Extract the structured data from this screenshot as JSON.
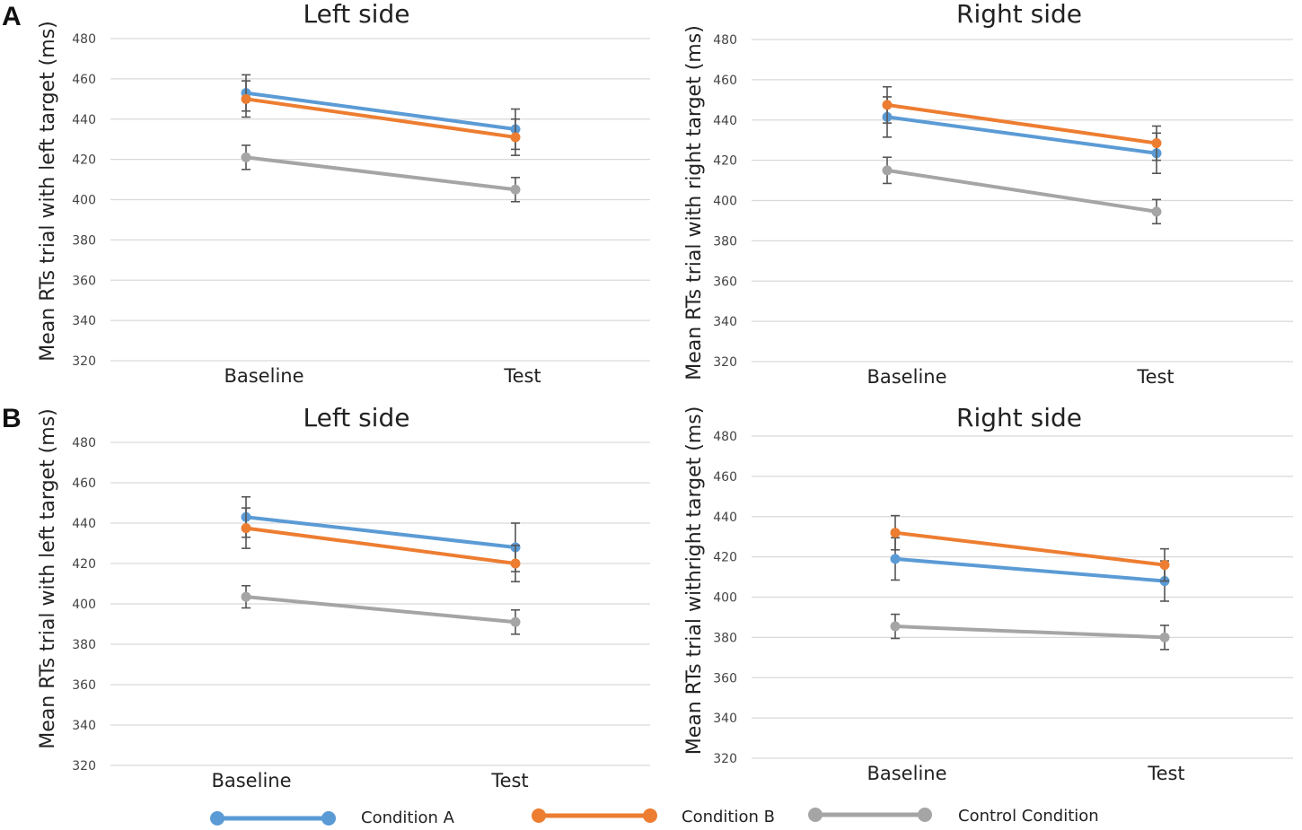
{
  "panel_letters": [
    "A",
    "B"
  ],
  "chart_data": [
    {
      "type": "line",
      "title": "Left side",
      "xlabel": "",
      "ylabel": "Mean RTs trial with left target (ms)",
      "categories": [
        "Baseline",
        "Test"
      ],
      "ylim": [
        320,
        480
      ],
      "yticks": [
        320,
        340,
        360,
        380,
        400,
        420,
        440,
        460,
        480
      ],
      "grid": true,
      "series": [
        {
          "name": "Condition A",
          "color": "#5b9bd5",
          "values": [
            453,
            435
          ],
          "errors": [
            9,
            10
          ]
        },
        {
          "name": "Condition B",
          "color": "#ed7d31",
          "values": [
            450,
            431
          ],
          "errors": [
            9,
            9
          ]
        },
        {
          "name": "Control Condition",
          "color": "#a5a5a5",
          "values": [
            421,
            405
          ],
          "errors": [
            6,
            6
          ]
        }
      ]
    },
    {
      "type": "line",
      "title": "Right side",
      "xlabel": "",
      "ylabel": "Mean RTs trial with right target (ms)",
      "categories": [
        "Baseline",
        "Test"
      ],
      "ylim": [
        320,
        480
      ],
      "yticks": [
        320,
        340,
        360,
        380,
        400,
        420,
        440,
        460,
        480
      ],
      "grid": true,
      "series": [
        {
          "name": "Condition A",
          "color": "#5b9bd5",
          "values": [
            441.5,
            423.5
          ],
          "errors": [
            10,
            10
          ]
        },
        {
          "name": "Condition B",
          "color": "#ed7d31",
          "values": [
            447.5,
            428.5
          ],
          "errors": [
            9,
            8.5
          ]
        },
        {
          "name": "Control Condition",
          "color": "#a5a5a5",
          "values": [
            415,
            394.5
          ],
          "errors": [
            6.5,
            6
          ]
        }
      ]
    },
    {
      "type": "line",
      "title": "Left side",
      "xlabel": "",
      "ylabel": "Mean RTs trial with left target (ms)",
      "categories": [
        "Baseline",
        "Test"
      ],
      "ylim": [
        320,
        480
      ],
      "yticks": [
        320,
        340,
        360,
        380,
        400,
        420,
        440,
        460,
        480
      ],
      "grid": true,
      "series": [
        {
          "name": "Condition A",
          "color": "#5b9bd5",
          "values": [
            443,
            428
          ],
          "errors": [
            10,
            12
          ]
        },
        {
          "name": "Condition B",
          "color": "#ed7d31",
          "values": [
            437.5,
            420
          ],
          "errors": [
            10,
            9
          ]
        },
        {
          "name": "Control Condition",
          "color": "#a5a5a5",
          "values": [
            403.5,
            391
          ],
          "errors": [
            5.5,
            6
          ]
        }
      ]
    },
    {
      "type": "line",
      "title": "Right side",
      "xlabel": "",
      "ylabel": "Mean RTs trial withright target (ms)",
      "categories": [
        "Baseline",
        "Test"
      ],
      "ylim": [
        320,
        480
      ],
      "yticks": [
        320,
        340,
        360,
        380,
        400,
        420,
        440,
        460,
        480
      ],
      "grid": true,
      "series": [
        {
          "name": "Condition A",
          "color": "#5b9bd5",
          "values": [
            419,
            408
          ],
          "errors": [
            10.5,
            10
          ]
        },
        {
          "name": "Condition B",
          "color": "#ed7d31",
          "values": [
            432,
            416
          ],
          "errors": [
            8.5,
            8
          ]
        },
        {
          "name": "Control Condition",
          "color": "#a5a5a5",
          "values": [
            385.5,
            380
          ],
          "errors": [
            6,
            6
          ]
        }
      ]
    }
  ],
  "legend": [
    {
      "label": "Condition A",
      "color": "#5b9bd5"
    },
    {
      "label": "Condition B",
      "color": "#ed7d31"
    },
    {
      "label": "Control Condition",
      "color": "#a5a5a5"
    }
  ]
}
